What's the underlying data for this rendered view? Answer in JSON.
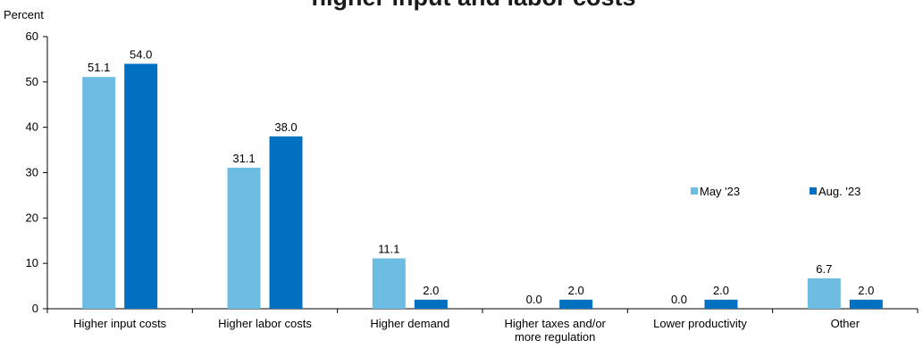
{
  "chart_data": {
    "type": "bar",
    "title": "higher input and labor costs",
    "ylabel": "Percent",
    "ylim": [
      0,
      60
    ],
    "yticks": [
      "0",
      "10",
      "20",
      "30",
      "40",
      "50",
      "60"
    ],
    "categories": [
      [
        "Higher input costs"
      ],
      [
        "Higher labor costs"
      ],
      [
        "Higher demand"
      ],
      [
        "Higher taxes and/or",
        "more regulation"
      ],
      [
        "Lower productivity"
      ],
      [
        "Other"
      ]
    ],
    "series": [
      {
        "name": "May '23",
        "color": "#6cbde1",
        "values": [
          51.1,
          31.1,
          11.1,
          0.0,
          0.0,
          6.7
        ],
        "labels": [
          "51.1",
          "31.1",
          "11.1",
          "0.0",
          "0.0",
          "6.7"
        ]
      },
      {
        "name": "Aug. '23",
        "color": "#0070c0",
        "values": [
          54.0,
          38.0,
          2.0,
          2.0,
          2.0,
          2.0
        ],
        "labels": [
          "54.0",
          "38.0",
          "2.0",
          "2.0",
          "2.0",
          "2.0"
        ]
      }
    ],
    "grid": false,
    "legend": "right"
  }
}
